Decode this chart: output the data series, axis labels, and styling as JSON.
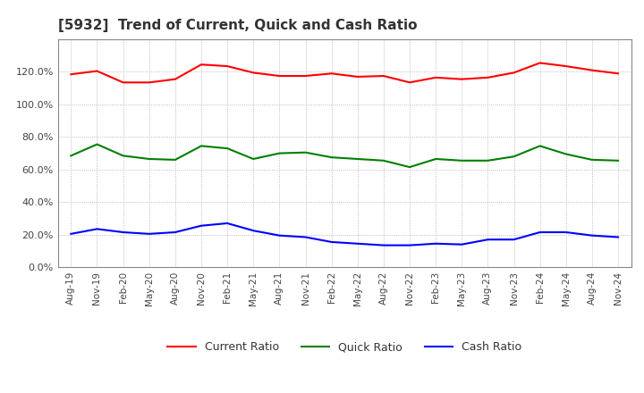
{
  "title": "[5932]  Trend of Current, Quick and Cash Ratio",
  "x_labels": [
    "Aug-19",
    "Nov-19",
    "Feb-20",
    "May-20",
    "Aug-20",
    "Nov-20",
    "Feb-21",
    "May-21",
    "Aug-21",
    "Nov-21",
    "Feb-22",
    "May-22",
    "Aug-22",
    "Nov-22",
    "Feb-23",
    "May-23",
    "Aug-23",
    "Nov-23",
    "Feb-24",
    "May-24",
    "Aug-24",
    "Nov-24"
  ],
  "current_ratio": [
    1.185,
    1.205,
    1.135,
    1.135,
    1.155,
    1.245,
    1.235,
    1.195,
    1.175,
    1.175,
    1.19,
    1.17,
    1.175,
    1.135,
    1.165,
    1.155,
    1.165,
    1.195,
    1.255,
    1.235,
    1.21,
    1.19
  ],
  "quick_ratio": [
    0.685,
    0.755,
    0.685,
    0.665,
    0.66,
    0.745,
    0.73,
    0.665,
    0.7,
    0.705,
    0.675,
    0.665,
    0.655,
    0.615,
    0.665,
    0.655,
    0.655,
    0.68,
    0.745,
    0.695,
    0.66,
    0.655
  ],
  "cash_ratio": [
    0.205,
    0.235,
    0.215,
    0.205,
    0.215,
    0.255,
    0.27,
    0.225,
    0.195,
    0.185,
    0.155,
    0.145,
    0.135,
    0.135,
    0.145,
    0.14,
    0.17,
    0.17,
    0.215,
    0.215,
    0.195,
    0.185
  ],
  "current_color": "#FF0000",
  "quick_color": "#008000",
  "cash_color": "#0000FF",
  "ylim": [
    0.0,
    1.4
  ],
  "yticks": [
    0.0,
    0.2,
    0.4,
    0.6,
    0.8,
    1.0,
    1.2
  ],
  "background_color": "#FFFFFF",
  "grid_color": "#AAAAAA"
}
